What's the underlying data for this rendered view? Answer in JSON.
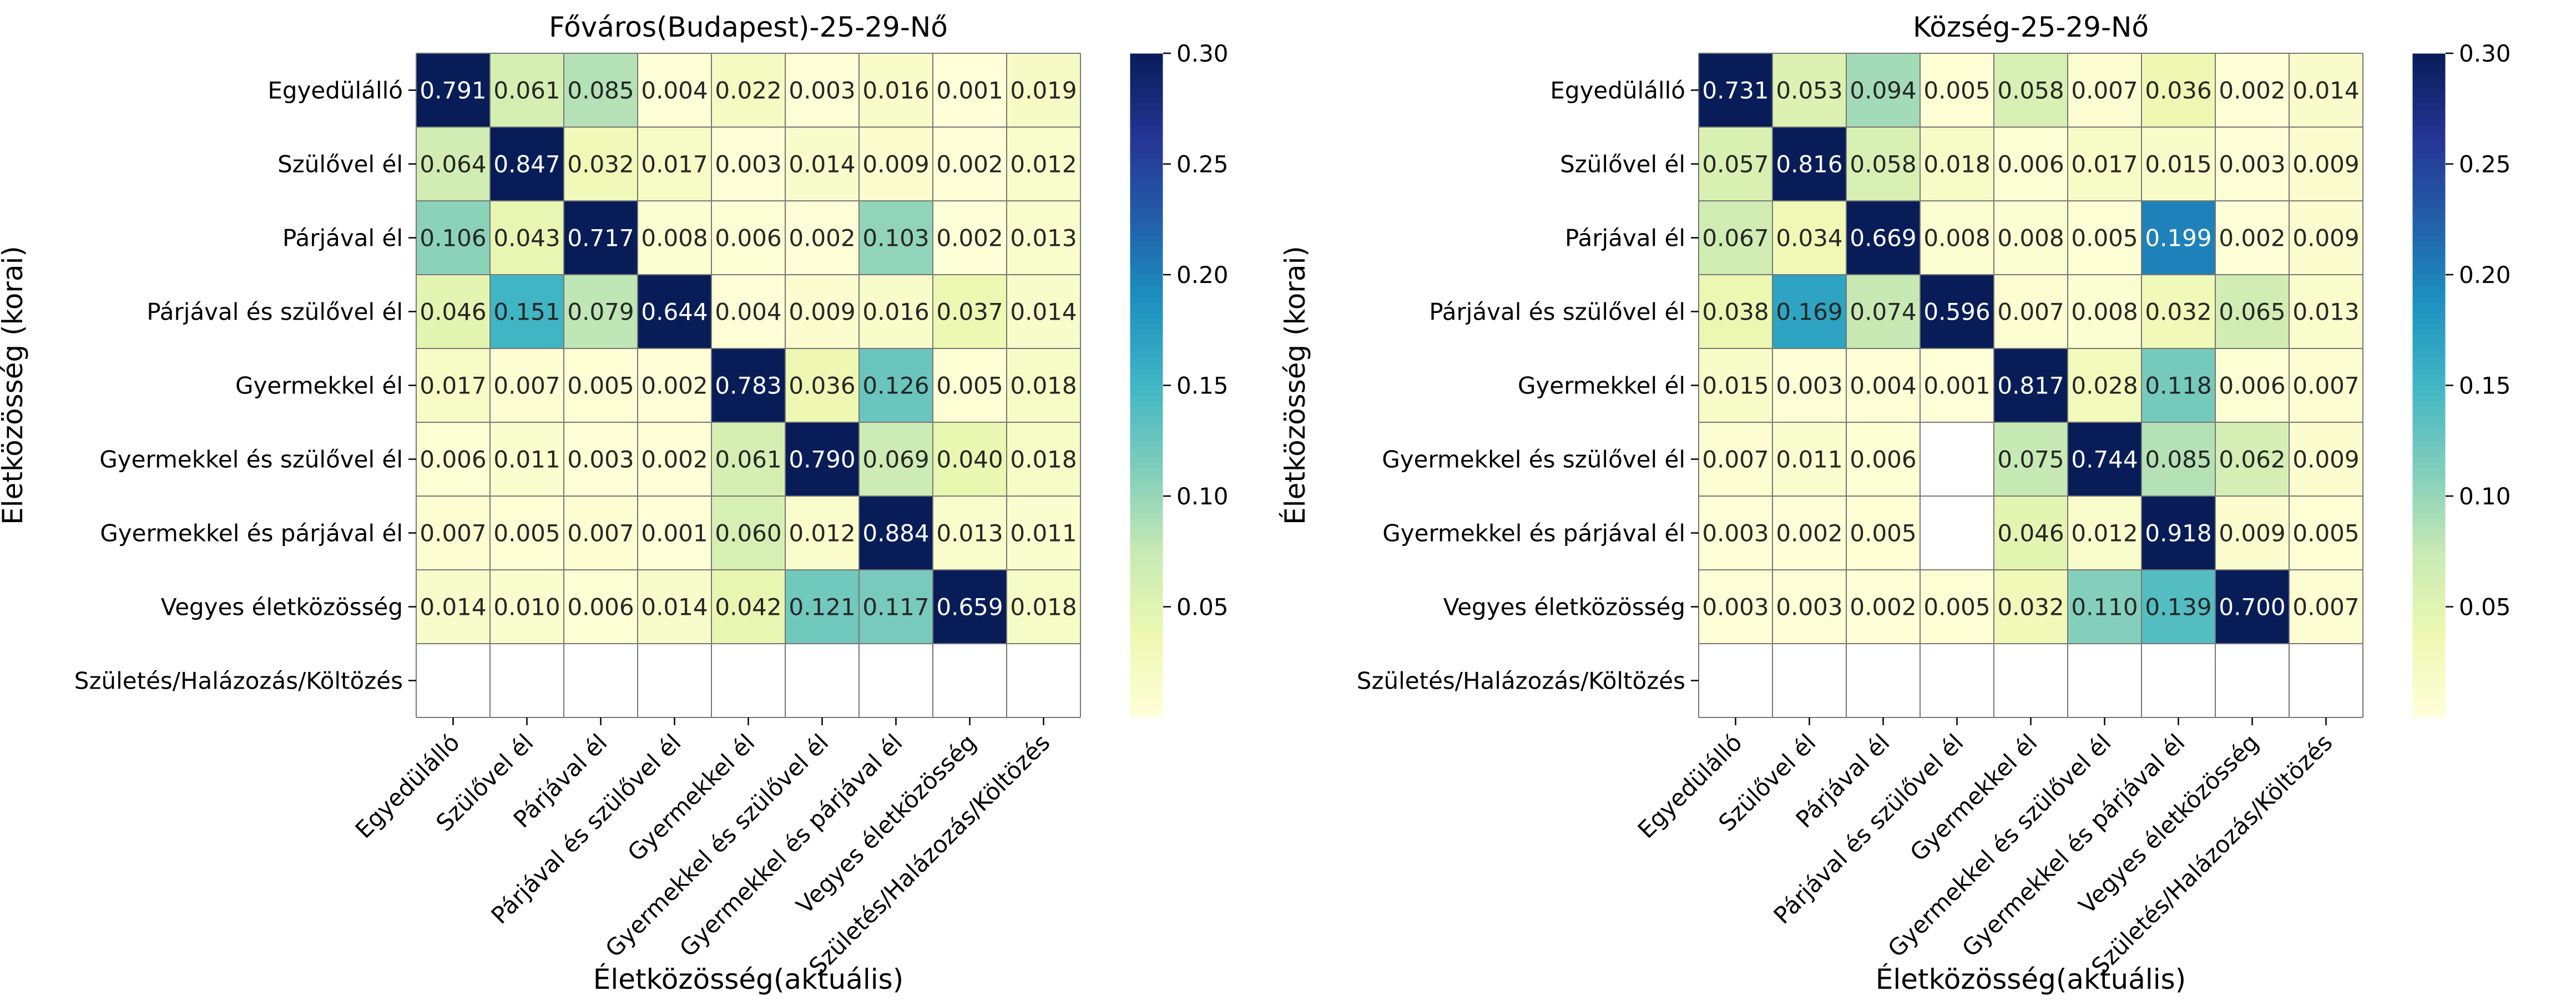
{
  "chart_data": [
    {
      "type": "heatmap",
      "title": "Főváros(Budapest)-25-29-Nő",
      "xlabel": "Életközösség(aktuális)",
      "ylabel": "Életközösség (korai)",
      "rows": [
        "Egyedülálló",
        "Szülővel él",
        "Párjával él",
        "Párjával és szülővel él",
        "Gyermekkel él",
        "Gyermekkel és szülővel él",
        "Gyermekkel és párjával él",
        "Vegyes életközösség",
        "Születés/Halázozás/Költözés"
      ],
      "columns": [
        "Egyedülálló",
        "Szülővel él",
        "Párjával él",
        "Párjával és szülővel él",
        "Gyermekkel él",
        "Gyermekkel és szülővel él",
        "Gyermekkel és párjával él",
        "Vegyes életközösség",
        "Születés/Halázozás/Költözés"
      ],
      "values": [
        [
          0.791,
          0.061,
          0.085,
          0.004,
          0.022,
          0.003,
          0.016,
          0.001,
          0.019
        ],
        [
          0.064,
          0.847,
          0.032,
          0.017,
          0.003,
          0.014,
          0.009,
          0.002,
          0.012
        ],
        [
          0.106,
          0.043,
          0.717,
          0.008,
          0.006,
          0.002,
          0.103,
          0.002,
          0.013
        ],
        [
          0.046,
          0.151,
          0.079,
          0.644,
          0.004,
          0.009,
          0.016,
          0.037,
          0.014
        ],
        [
          0.017,
          0.007,
          0.005,
          0.002,
          0.783,
          0.036,
          0.126,
          0.005,
          0.018
        ],
        [
          0.006,
          0.011,
          0.003,
          0.002,
          0.061,
          0.79,
          0.069,
          0.04,
          0.018
        ],
        [
          0.007,
          0.005,
          0.007,
          0.001,
          0.06,
          0.012,
          0.884,
          0.013,
          0.011
        ],
        [
          0.014,
          0.01,
          0.006,
          0.014,
          0.042,
          0.121,
          0.117,
          0.659,
          0.018
        ],
        [
          null,
          null,
          null,
          null,
          null,
          null,
          null,
          null,
          null
        ]
      ],
      "colorbar": {
        "colormap": "YlGnBu",
        "vmin": 0,
        "vmax": 0.3,
        "ticks": [
          "0.05",
          "0.10",
          "0.15",
          "0.20",
          "0.25",
          "0.30"
        ]
      }
    },
    {
      "type": "heatmap",
      "title": "Község-25-29-Nő",
      "xlabel": "Életközösség(aktuális)",
      "ylabel": "Életközösség (korai)",
      "rows": [
        "Egyedülálló",
        "Szülővel él",
        "Párjával él",
        "Párjával és szülővel él",
        "Gyermekkel él",
        "Gyermekkel és szülővel él",
        "Gyermekkel és párjával él",
        "Vegyes életközösség",
        "Születés/Halázozás/Költözés"
      ],
      "columns": [
        "Egyedülálló",
        "Szülővel él",
        "Párjával él",
        "Párjával és szülővel él",
        "Gyermekkel él",
        "Gyermekkel és szülővel él",
        "Gyermekkel és párjával él",
        "Vegyes életközösség",
        "Születés/Halázozás/Költözés"
      ],
      "values": [
        [
          0.731,
          0.053,
          0.094,
          0.005,
          0.058,
          0.007,
          0.036,
          0.002,
          0.014
        ],
        [
          0.057,
          0.816,
          0.058,
          0.018,
          0.006,
          0.017,
          0.015,
          0.003,
          0.009
        ],
        [
          0.067,
          0.034,
          0.669,
          0.008,
          0.008,
          0.005,
          0.199,
          0.002,
          0.009
        ],
        [
          0.038,
          0.169,
          0.074,
          0.596,
          0.007,
          0.008,
          0.032,
          0.065,
          0.013
        ],
        [
          0.015,
          0.003,
          0.004,
          0.001,
          0.817,
          0.028,
          0.118,
          0.006,
          0.007
        ],
        [
          0.007,
          0.011,
          0.006,
          null,
          0.075,
          0.744,
          0.085,
          0.062,
          0.009
        ],
        [
          0.003,
          0.002,
          0.005,
          null,
          0.046,
          0.012,
          0.918,
          0.009,
          0.005
        ],
        [
          0.003,
          0.003,
          0.002,
          0.005,
          0.032,
          0.11,
          0.139,
          0.7,
          0.007
        ],
        [
          null,
          null,
          null,
          null,
          null,
          null,
          null,
          null,
          null
        ]
      ],
      "colorbar": {
        "colormap": "YlGnBu",
        "vmin": 0,
        "vmax": 0.3,
        "ticks": [
          "0.05",
          "0.10",
          "0.15",
          "0.20",
          "0.25",
          "0.30"
        ]
      }
    }
  ]
}
